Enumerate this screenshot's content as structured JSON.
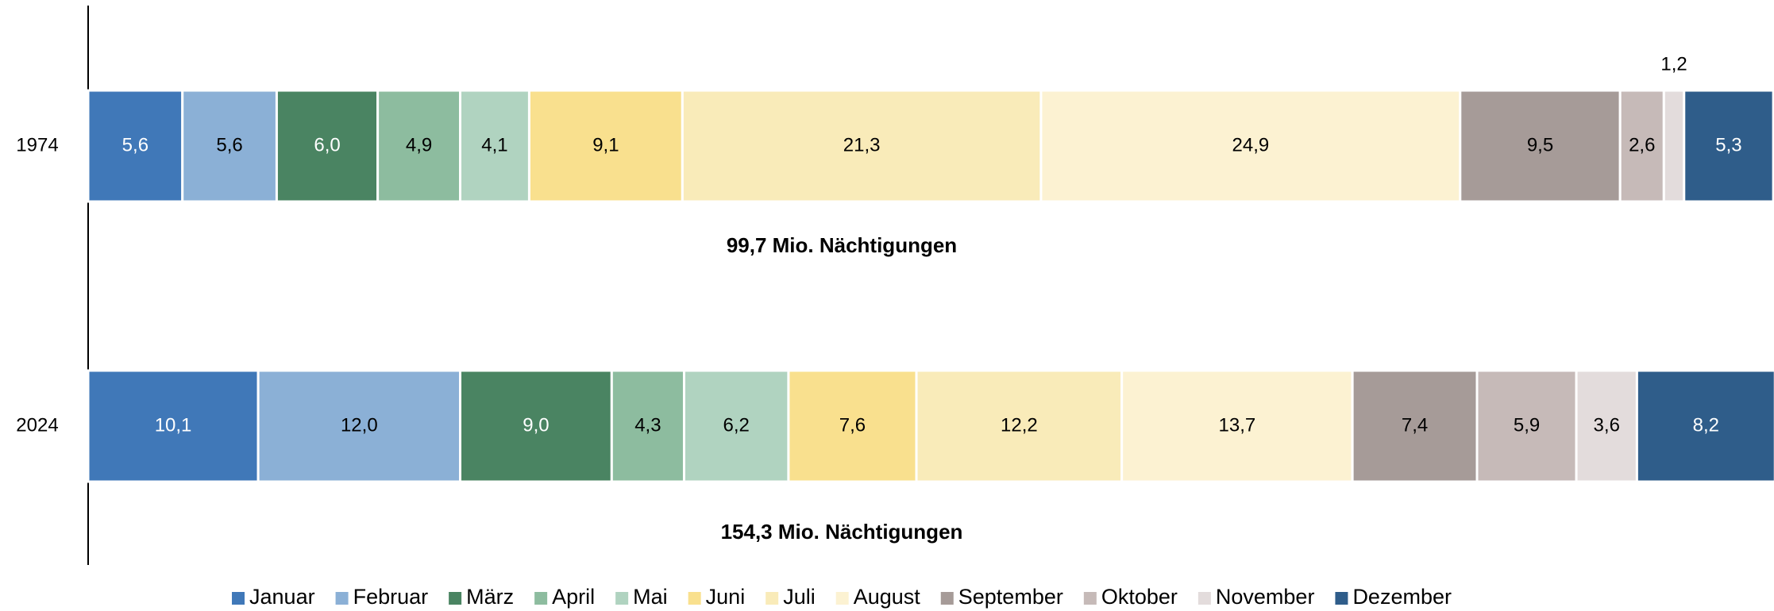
{
  "chart_data": {
    "type": "stacked_bar_horizontal",
    "categories": [
      "1974",
      "2024"
    ],
    "xlim": [
      0,
      100
    ],
    "annotations": [
      "99,7 Mio. Nächtigungen",
      "154,3 Mio. Nächtigungen"
    ],
    "legend": "bottom",
    "series": [
      {
        "name": "Januar",
        "color": "#4078b8",
        "values": [
          5.6,
          10.1
        ],
        "value_labels": [
          "5,6",
          "10,1"
        ]
      },
      {
        "name": "Februar",
        "color": "#8bb0d6",
        "values": [
          5.6,
          12.0
        ],
        "value_labels": [
          "5,6",
          "12,0"
        ]
      },
      {
        "name": "März",
        "color": "#4a8462",
        "values": [
          6.0,
          9.0
        ],
        "value_labels": [
          "6,0",
          "9,0"
        ]
      },
      {
        "name": "April",
        "color": "#8dbc9f",
        "values": [
          4.9,
          4.3
        ],
        "value_labels": [
          "4,9",
          "4,3"
        ]
      },
      {
        "name": "Mai",
        "color": "#b0d3c0",
        "values": [
          4.1,
          6.2
        ],
        "value_labels": [
          "4,1",
          "6,2"
        ]
      },
      {
        "name": "Juni",
        "color": "#f9e08e",
        "values": [
          9.1,
          7.6
        ],
        "value_labels": [
          "9,1",
          "7,6"
        ]
      },
      {
        "name": "Juli",
        "color": "#f9ebb9",
        "values": [
          21.3,
          12.2
        ],
        "value_labels": [
          "21,3",
          "12,2"
        ]
      },
      {
        "name": "August",
        "color": "#fcf2d2",
        "values": [
          24.9,
          13.7
        ],
        "value_labels": [
          "24,9",
          "13,7"
        ]
      },
      {
        "name": "September",
        "color": "#a69b98",
        "values": [
          9.5,
          7.4
        ],
        "value_labels": [
          "9,5",
          "7,4"
        ]
      },
      {
        "name": "Oktober",
        "color": "#c6bab8",
        "values": [
          2.6,
          5.9
        ],
        "value_labels": [
          "2,6",
          "5,9"
        ]
      },
      {
        "name": "November",
        "color": "#e3dcdc",
        "values": [
          1.2,
          3.6
        ],
        "value_labels": [
          "1,2",
          "3,6"
        ]
      },
      {
        "name": "Dezember",
        "color": "#2f5d8a",
        "values": [
          5.3,
          8.2
        ],
        "value_labels": [
          "5,3",
          "8,2"
        ]
      }
    ]
  }
}
